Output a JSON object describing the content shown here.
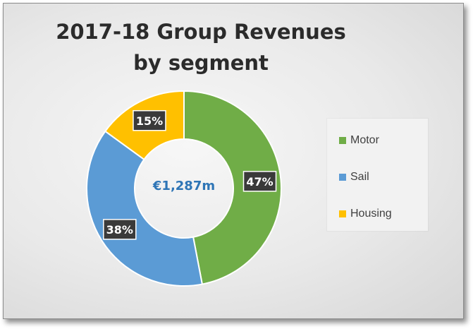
{
  "chart_data": {
    "type": "pie",
    "title_line1": "2017-18 Group Revenues",
    "title_line2": "by segment",
    "center_label": "€1,287m",
    "slices": [
      {
        "name": "Motor",
        "value": 47,
        "label": "47%",
        "color": "#70ad47"
      },
      {
        "name": "Sail",
        "value": 38,
        "label": "38%",
        "color": "#5b9bd5"
      },
      {
        "name": "Housing",
        "value": 15,
        "label": "15%",
        "color": "#ffc000"
      }
    ],
    "legend_position": "right",
    "center_label_color": "#2e75b6"
  }
}
